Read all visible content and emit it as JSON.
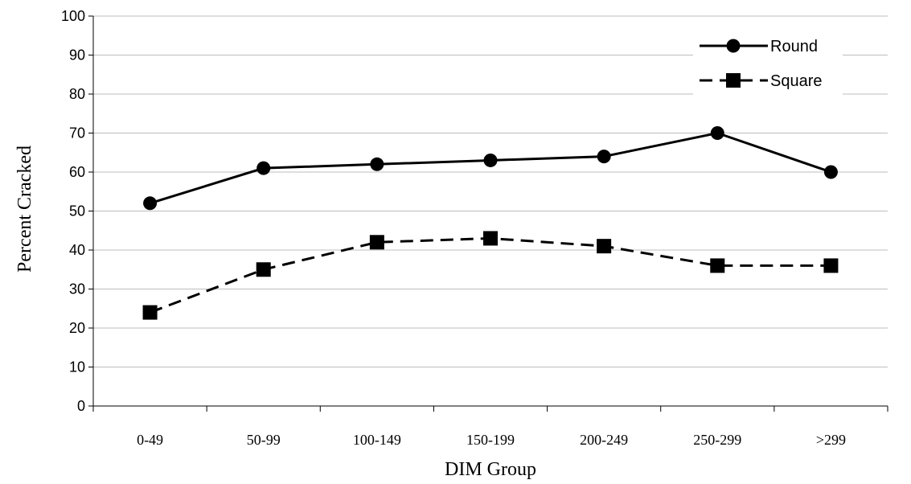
{
  "chart_data": {
    "type": "line",
    "xlabel": "DIM Group",
    "ylabel": "Percent Cracked",
    "categories": [
      "0-49",
      "50-99",
      "100-149",
      "150-199",
      "200-249",
      "250-299",
      ">299"
    ],
    "ylim": [
      0,
      100
    ],
    "yticks": [
      0,
      10,
      20,
      30,
      40,
      50,
      60,
      70,
      80,
      90,
      100
    ],
    "grid": true,
    "legend_position": "top-right",
    "series": [
      {
        "name": "Round",
        "values": [
          52,
          61,
          62,
          63,
          64,
          70,
          60
        ],
        "marker": "circle",
        "line": "solid",
        "color": "#000000"
      },
      {
        "name": "Square",
        "values": [
          24,
          35,
          42,
          43,
          41,
          36,
          36
        ],
        "marker": "square",
        "line": "dashed",
        "color": "#000000"
      }
    ]
  }
}
